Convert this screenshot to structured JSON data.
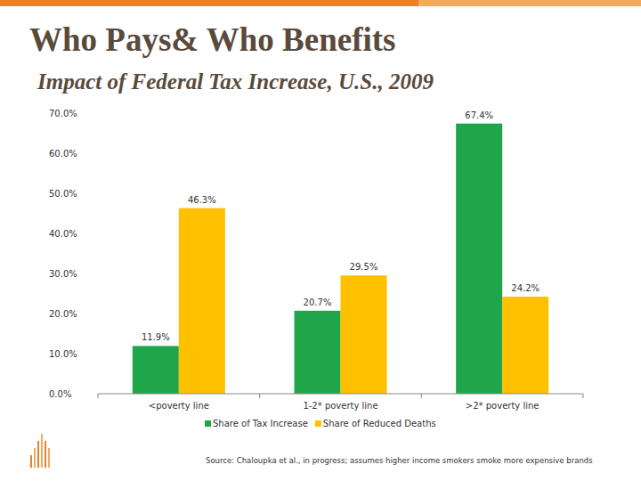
{
  "chart_data": {
    "type": "bar",
    "title": "Who Pays& Who Benefits",
    "subtitle": "Impact of Federal Tax Increase, U.S., 2009",
    "source": "Source: Chaloupka et al., in progress; assumes higher income smokers smoke more expensive brands",
    "categories": [
      "<poverty line",
      "1-2* poverty line",
      ">2* poverty line"
    ],
    "series": [
      {
        "name": "Share of Tax Increase",
        "color": "#1fa64a",
        "values": [
          11.9,
          20.7,
          67.4
        ],
        "value_labels": [
          "11.9%",
          "20.7%",
          "67.4%"
        ]
      },
      {
        "name": "Share of Reduced Deaths",
        "color": "#ffc000",
        "values": [
          46.3,
          29.5,
          24.2
        ],
        "value_labels": [
          "46.3%",
          "29.5%",
          "24.2%"
        ]
      }
    ],
    "ylim": [
      0,
      70
    ],
    "yticks": [
      {
        "value": 0,
        "label": "0.0%"
      },
      {
        "value": 10,
        "label": "10.0%"
      },
      {
        "value": 20,
        "label": "20.0%"
      },
      {
        "value": 30,
        "label": "30.0%"
      },
      {
        "value": 40,
        "label": "40.0%"
      },
      {
        "value": 50,
        "label": "50.0%"
      },
      {
        "value": 60,
        "label": "60.0%"
      },
      {
        "value": 70,
        "label": "70.0%"
      }
    ],
    "grid": false,
    "data_labels": true,
    "legend": "bottom"
  }
}
